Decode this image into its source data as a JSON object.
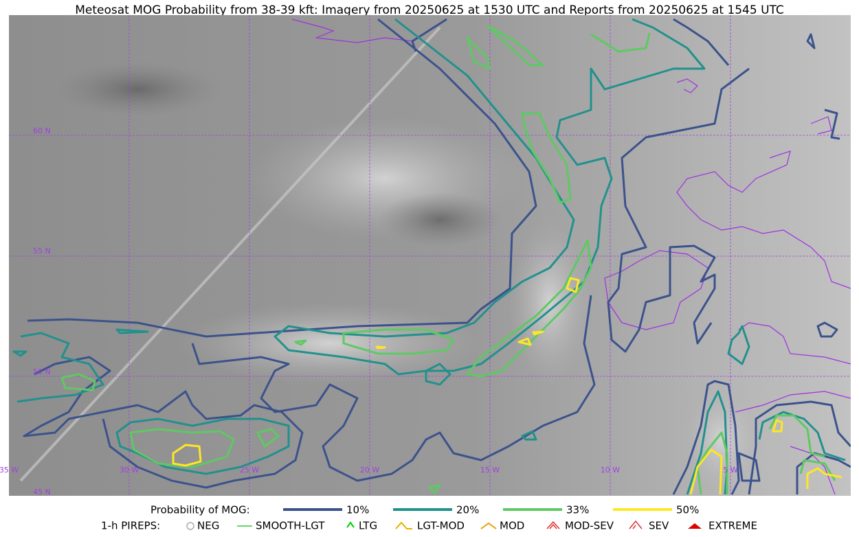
{
  "title": "Meteosat MOG Probability from 38-39 kft: Imagery from 20250625 at 1530 UTC and Reports from 20250625 at 1545 UTC",
  "lat_labels": [
    "60 N",
    "55 N",
    "50 N",
    "45 N"
  ],
  "lon_labels": [
    "35 W",
    "30 W",
    "25 W",
    "20 W",
    "15 W",
    "10 W",
    "5 W"
  ],
  "legend": {
    "probability": {
      "label": "Probability of MOG:",
      "items": [
        {
          "label": "10%",
          "color": "#3b528b"
        },
        {
          "label": "20%",
          "color": "#21918c"
        },
        {
          "label": "33%",
          "color": "#5ec962"
        },
        {
          "label": "50%",
          "color": "#fde725"
        }
      ]
    },
    "pireps": {
      "label": "1-h PIREPS:",
      "items": [
        "NEG",
        "SMOOTH-LGT",
        "LTG",
        "LGT-MOD",
        "MOD",
        "MOD-SEV",
        "SEV",
        "EXTREME"
      ]
    }
  }
}
